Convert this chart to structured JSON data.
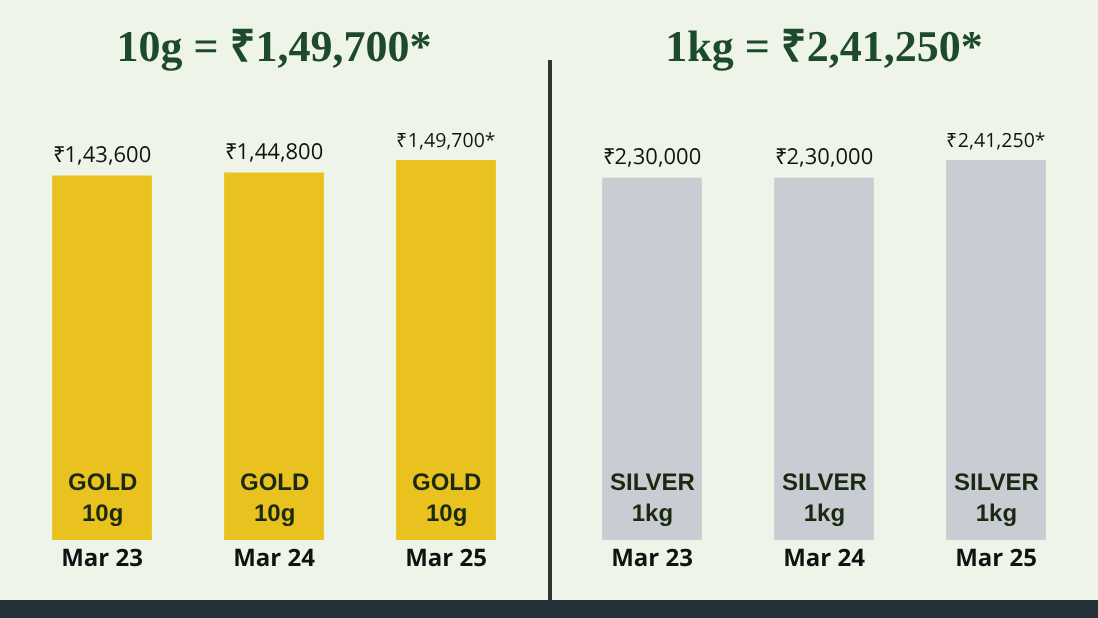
{
  "chart_data": [
    {
      "type": "bar",
      "title": "10g = ₹1,49,700*",
      "categories": [
        "Mar 23",
        "Mar 24",
        "Mar 25"
      ],
      "values": [
        143600,
        144800,
        149700
      ],
      "color": "#e9c21f",
      "value_labels": [
        "₹1,43,600",
        "₹1,44,800",
        "₹1,49,700*"
      ],
      "tick_labels": "x",
      "annotations": [
        "GOLD 10g",
        "GOLD 10g",
        "GOLD 10g"
      ]
    },
    {
      "type": "bar",
      "title": "1kg = ₹2,41,250*",
      "categories": [
        "Mar 23",
        "Mar 24",
        "Mar 25"
      ],
      "values": [
        230000,
        230000,
        241250
      ],
      "color": "#c9ccd3",
      "value_labels": [
        "₹2,30,000",
        "₹2,30,000",
        "₹2,41,250*"
      ],
      "tick_labels": "x",
      "annotations": [
        "SILVER 1kg",
        "SILVER 1kg",
        "SILVER 1kg"
      ]
    }
  ]
}
